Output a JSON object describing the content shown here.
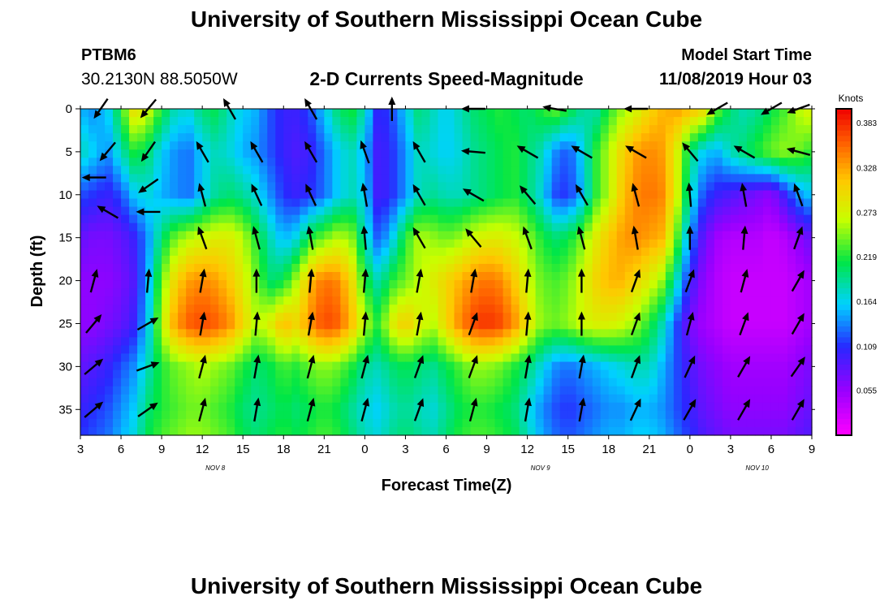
{
  "header": {
    "title": "University of Southern Mississippi Ocean Cube",
    "station_id": "PTBM6",
    "station_coords": "30.2130N 88.5050W",
    "subtitle": "2-D Currents Speed-Magnitude",
    "model_start_label": "Model Start Time",
    "model_start_value": "11/08/2019 Hour 03"
  },
  "footer": {
    "title": "University of Southern Mississippi Ocean Cube"
  },
  "chart_data": {
    "type": "heatmap",
    "title": "2-D Currents Speed-Magnitude",
    "xlabel": "Forecast Time(Z)",
    "ylabel": "Depth (ft)",
    "x_ticks": [
      "3",
      "6",
      "9",
      "12",
      "15",
      "18",
      "21",
      "0",
      "3",
      "6",
      "9",
      "12",
      "15",
      "18",
      "21",
      "0",
      "3",
      "6",
      "9"
    ],
    "x_start_hour": 3,
    "x_end_hour": 57,
    "y_ticks": [
      0,
      5,
      10,
      15,
      20,
      25,
      30,
      35
    ],
    "ylim": [
      0,
      38
    ],
    "y_inverted": true,
    "date_labels": [
      {
        "label": "NOV 8",
        "hour": 12
      },
      {
        "label": "NOV 9",
        "hour": 36
      },
      {
        "label": "NOV 10",
        "hour": 52
      }
    ],
    "colorbar": {
      "title": "Knots",
      "ticks": [
        "0.383",
        "0.328",
        "0.273",
        "0.219",
        "0.164",
        "0.109",
        "0.055"
      ],
      "range": [
        0.0,
        0.4
      ]
    },
    "speed_hours": [
      3,
      4,
      5,
      6,
      7,
      8,
      9,
      10,
      11,
      12,
      13,
      14,
      15,
      16,
      17,
      18,
      19,
      20,
      21,
      22,
      23,
      24,
      25,
      26,
      27,
      28,
      29,
      30,
      31,
      32,
      33,
      34,
      35,
      36,
      37,
      38,
      39,
      40,
      41,
      42,
      43,
      44,
      45,
      46,
      47,
      48,
      49,
      50,
      51,
      52,
      53,
      54,
      55,
      56,
      57
    ],
    "speed_depths": [
      0,
      5,
      10,
      15,
      20,
      25,
      30,
      35,
      38
    ],
    "speed": [
      [
        0.15,
        0.14,
        0.16,
        0.22,
        0.3,
        0.27,
        0.22,
        0.18,
        0.17,
        0.2,
        0.21,
        0.18,
        0.16,
        0.15,
        0.12,
        0.1,
        0.1,
        0.12,
        0.16,
        0.2,
        0.22,
        0.18,
        0.1,
        0.12,
        0.16,
        0.2,
        0.18,
        0.16,
        0.18,
        0.2,
        0.21,
        0.22,
        0.21,
        0.2,
        0.22,
        0.24,
        0.22,
        0.19,
        0.18,
        0.22,
        0.25,
        0.27,
        0.3,
        0.32,
        0.33,
        0.32,
        0.3,
        0.24,
        0.2,
        0.18,
        0.19,
        0.21,
        0.23,
        0.26,
        0.28
      ],
      [
        0.18,
        0.16,
        0.14,
        0.18,
        0.22,
        0.2,
        0.16,
        0.14,
        0.13,
        0.16,
        0.18,
        0.17,
        0.15,
        0.14,
        0.12,
        0.1,
        0.09,
        0.1,
        0.13,
        0.16,
        0.18,
        0.15,
        0.09,
        0.11,
        0.14,
        0.18,
        0.17,
        0.16,
        0.17,
        0.19,
        0.2,
        0.21,
        0.22,
        0.2,
        0.18,
        0.14,
        0.12,
        0.16,
        0.22,
        0.26,
        0.3,
        0.33,
        0.34,
        0.33,
        0.28,
        0.2,
        0.16,
        0.15,
        0.18,
        0.2,
        0.22,
        0.24,
        0.25,
        0.24,
        0.22
      ],
      [
        0.12,
        0.11,
        0.1,
        0.12,
        0.16,
        0.17,
        0.15,
        0.14,
        0.13,
        0.16,
        0.19,
        0.2,
        0.19,
        0.17,
        0.14,
        0.11,
        0.1,
        0.11,
        0.13,
        0.16,
        0.18,
        0.16,
        0.09,
        0.11,
        0.14,
        0.18,
        0.19,
        0.18,
        0.18,
        0.19,
        0.2,
        0.21,
        0.22,
        0.2,
        0.17,
        0.12,
        0.11,
        0.15,
        0.22,
        0.26,
        0.31,
        0.34,
        0.35,
        0.34,
        0.28,
        0.18,
        0.12,
        0.1,
        0.09,
        0.08,
        0.07,
        0.06,
        0.1,
        0.14,
        0.16
      ],
      [
        0.08,
        0.07,
        0.07,
        0.08,
        0.1,
        0.14,
        0.2,
        0.24,
        0.26,
        0.27,
        0.28,
        0.28,
        0.26,
        0.22,
        0.18,
        0.15,
        0.17,
        0.22,
        0.24,
        0.26,
        0.25,
        0.18,
        0.12,
        0.16,
        0.22,
        0.26,
        0.25,
        0.24,
        0.25,
        0.27,
        0.28,
        0.28,
        0.27,
        0.25,
        0.22,
        0.2,
        0.21,
        0.24,
        0.28,
        0.31,
        0.33,
        0.34,
        0.33,
        0.32,
        0.24,
        0.14,
        0.08,
        0.05,
        0.04,
        0.04,
        0.04,
        0.03,
        0.04,
        0.06,
        0.08
      ],
      [
        0.06,
        0.06,
        0.06,
        0.07,
        0.09,
        0.15,
        0.24,
        0.3,
        0.33,
        0.34,
        0.33,
        0.31,
        0.28,
        0.24,
        0.2,
        0.21,
        0.26,
        0.32,
        0.35,
        0.34,
        0.3,
        0.22,
        0.18,
        0.22,
        0.24,
        0.26,
        0.28,
        0.3,
        0.32,
        0.34,
        0.35,
        0.34,
        0.31,
        0.27,
        0.24,
        0.23,
        0.24,
        0.27,
        0.3,
        0.32,
        0.32,
        0.3,
        0.28,
        0.25,
        0.18,
        0.1,
        0.06,
        0.04,
        0.03,
        0.03,
        0.03,
        0.03,
        0.03,
        0.04,
        0.05
      ],
      [
        0.06,
        0.06,
        0.07,
        0.08,
        0.1,
        0.16,
        0.26,
        0.33,
        0.36,
        0.37,
        0.36,
        0.34,
        0.3,
        0.26,
        0.28,
        0.32,
        0.3,
        0.34,
        0.37,
        0.36,
        0.32,
        0.26,
        0.22,
        0.28,
        0.31,
        0.28,
        0.26,
        0.3,
        0.34,
        0.37,
        0.38,
        0.37,
        0.34,
        0.29,
        0.25,
        0.24,
        0.25,
        0.27,
        0.28,
        0.28,
        0.27,
        0.25,
        0.22,
        0.18,
        0.12,
        0.07,
        0.05,
        0.04,
        0.03,
        0.03,
        0.03,
        0.03,
        0.03,
        0.04,
        0.05
      ],
      [
        0.08,
        0.09,
        0.1,
        0.12,
        0.14,
        0.18,
        0.22,
        0.24,
        0.25,
        0.26,
        0.25,
        0.24,
        0.22,
        0.2,
        0.21,
        0.23,
        0.22,
        0.24,
        0.25,
        0.24,
        0.22,
        0.19,
        0.18,
        0.2,
        0.21,
        0.2,
        0.19,
        0.21,
        0.23,
        0.25,
        0.25,
        0.24,
        0.22,
        0.2,
        0.17,
        0.14,
        0.13,
        0.14,
        0.15,
        0.16,
        0.17,
        0.18,
        0.18,
        0.15,
        0.12,
        0.09,
        0.07,
        0.06,
        0.05,
        0.05,
        0.05,
        0.05,
        0.05,
        0.06,
        0.07
      ],
      [
        0.1,
        0.11,
        0.12,
        0.14,
        0.16,
        0.2,
        0.22,
        0.23,
        0.24,
        0.24,
        0.23,
        0.22,
        0.2,
        0.19,
        0.2,
        0.21,
        0.2,
        0.21,
        0.22,
        0.21,
        0.19,
        0.17,
        0.16,
        0.18,
        0.19,
        0.18,
        0.17,
        0.19,
        0.21,
        0.22,
        0.22,
        0.21,
        0.2,
        0.17,
        0.14,
        0.12,
        0.11,
        0.12,
        0.13,
        0.14,
        0.14,
        0.15,
        0.15,
        0.14,
        0.12,
        0.1,
        0.08,
        0.07,
        0.06,
        0.06,
        0.06,
        0.06,
        0.06,
        0.07,
        0.08
      ],
      [
        0.11,
        0.12,
        0.13,
        0.15,
        0.17,
        0.21,
        0.23,
        0.24,
        0.25,
        0.25,
        0.24,
        0.23,
        0.21,
        0.2,
        0.21,
        0.22,
        0.21,
        0.22,
        0.23,
        0.22,
        0.2,
        0.18,
        0.17,
        0.19,
        0.2,
        0.19,
        0.18,
        0.2,
        0.22,
        0.23,
        0.23,
        0.22,
        0.21,
        0.18,
        0.15,
        0.13,
        0.12,
        0.13,
        0.14,
        0.15,
        0.15,
        0.16,
        0.16,
        0.15,
        0.13,
        0.11,
        0.09,
        0.08,
        0.07,
        0.07,
        0.07,
        0.07,
        0.07,
        0.08,
        0.09
      ]
    ],
    "vectors": [
      {
        "h": 4.5,
        "d": 0,
        "dir": 215
      },
      {
        "h": 8,
        "d": 0,
        "dir": 220
      },
      {
        "h": 14,
        "d": 0,
        "dir": 330
      },
      {
        "h": 20,
        "d": 0,
        "dir": 330
      },
      {
        "h": 26,
        "d": 0,
        "dir": 0
      },
      {
        "h": 32,
        "d": 0,
        "dir": 270
      },
      {
        "h": 38,
        "d": 0,
        "dir": 280
      },
      {
        "h": 44,
        "d": 0,
        "dir": 270
      },
      {
        "h": 50,
        "d": 0,
        "dir": 240
      },
      {
        "h": 54,
        "d": 0,
        "dir": 240
      },
      {
        "h": 56,
        "d": 0,
        "dir": 250
      },
      {
        "h": 5,
        "d": 5,
        "dir": 220
      },
      {
        "h": 8,
        "d": 5,
        "dir": 215
      },
      {
        "h": 12,
        "d": 5,
        "dir": 330
      },
      {
        "h": 16,
        "d": 5,
        "dir": 330
      },
      {
        "h": 20,
        "d": 5,
        "dir": 330
      },
      {
        "h": 24,
        "d": 5,
        "dir": 340
      },
      {
        "h": 28,
        "d": 5,
        "dir": 330
      },
      {
        "h": 32,
        "d": 5,
        "dir": 275
      },
      {
        "h": 36,
        "d": 5,
        "dir": 300
      },
      {
        "h": 40,
        "d": 5,
        "dir": 300
      },
      {
        "h": 44,
        "d": 5,
        "dir": 300
      },
      {
        "h": 48,
        "d": 5,
        "dir": 320
      },
      {
        "h": 52,
        "d": 5,
        "dir": 300
      },
      {
        "h": 56,
        "d": 5,
        "dir": 285
      },
      {
        "h": 4,
        "d": 8,
        "dir": 270
      },
      {
        "h": 8,
        "d": 9,
        "dir": 235
      },
      {
        "h": 12,
        "d": 10,
        "dir": 345
      },
      {
        "h": 16,
        "d": 10,
        "dir": 335
      },
      {
        "h": 20,
        "d": 10,
        "dir": 335
      },
      {
        "h": 24,
        "d": 10,
        "dir": 350
      },
      {
        "h": 28,
        "d": 10,
        "dir": 330
      },
      {
        "h": 32,
        "d": 10,
        "dir": 300
      },
      {
        "h": 36,
        "d": 10,
        "dir": 320
      },
      {
        "h": 40,
        "d": 10,
        "dir": 330
      },
      {
        "h": 44,
        "d": 10,
        "dir": 345
      },
      {
        "h": 48,
        "d": 10,
        "dir": 355
      },
      {
        "h": 52,
        "d": 10,
        "dir": 350
      },
      {
        "h": 56,
        "d": 10,
        "dir": 340
      },
      {
        "h": 5,
        "d": 12,
        "dir": 300
      },
      {
        "h": 8,
        "d": 12,
        "dir": 270
      },
      {
        "h": 12,
        "d": 15,
        "dir": 340
      },
      {
        "h": 16,
        "d": 15,
        "dir": 345
      },
      {
        "h": 20,
        "d": 15,
        "dir": 350
      },
      {
        "h": 24,
        "d": 15,
        "dir": 355
      },
      {
        "h": 28,
        "d": 15,
        "dir": 330
      },
      {
        "h": 32,
        "d": 15,
        "dir": 320
      },
      {
        "h": 36,
        "d": 15,
        "dir": 340
      },
      {
        "h": 40,
        "d": 15,
        "dir": 345
      },
      {
        "h": 44,
        "d": 15,
        "dir": 350
      },
      {
        "h": 48,
        "d": 15,
        "dir": 0
      },
      {
        "h": 52,
        "d": 15,
        "dir": 5
      },
      {
        "h": 56,
        "d": 15,
        "dir": 20
      },
      {
        "h": 4,
        "d": 20,
        "dir": 15
      },
      {
        "h": 8,
        "d": 20,
        "dir": 5
      },
      {
        "h": 12,
        "d": 20,
        "dir": 10
      },
      {
        "h": 16,
        "d": 20,
        "dir": 0
      },
      {
        "h": 20,
        "d": 20,
        "dir": 5
      },
      {
        "h": 24,
        "d": 20,
        "dir": 5
      },
      {
        "h": 28,
        "d": 20,
        "dir": 10
      },
      {
        "h": 32,
        "d": 20,
        "dir": 10
      },
      {
        "h": 36,
        "d": 20,
        "dir": 5
      },
      {
        "h": 40,
        "d": 20,
        "dir": 0
      },
      {
        "h": 44,
        "d": 20,
        "dir": 20
      },
      {
        "h": 48,
        "d": 20,
        "dir": 20
      },
      {
        "h": 52,
        "d": 20,
        "dir": 15
      },
      {
        "h": 56,
        "d": 20,
        "dir": 30
      },
      {
        "h": 4,
        "d": 25,
        "dir": 40
      },
      {
        "h": 8,
        "d": 25,
        "dir": 60
      },
      {
        "h": 12,
        "d": 25,
        "dir": 10
      },
      {
        "h": 16,
        "d": 25,
        "dir": 5
      },
      {
        "h": 20,
        "d": 25,
        "dir": 10
      },
      {
        "h": 24,
        "d": 25,
        "dir": 5
      },
      {
        "h": 28,
        "d": 25,
        "dir": 10
      },
      {
        "h": 32,
        "d": 25,
        "dir": 20
      },
      {
        "h": 36,
        "d": 25,
        "dir": 5
      },
      {
        "h": 40,
        "d": 25,
        "dir": 0
      },
      {
        "h": 44,
        "d": 25,
        "dir": 20
      },
      {
        "h": 48,
        "d": 25,
        "dir": 15
      },
      {
        "h": 52,
        "d": 25,
        "dir": 20
      },
      {
        "h": 56,
        "d": 25,
        "dir": 30
      },
      {
        "h": 4,
        "d": 30,
        "dir": 50
      },
      {
        "h": 8,
        "d": 30,
        "dir": 70
      },
      {
        "h": 12,
        "d": 30,
        "dir": 15
      },
      {
        "h": 16,
        "d": 30,
        "dir": 10
      },
      {
        "h": 20,
        "d": 30,
        "dir": 15
      },
      {
        "h": 24,
        "d": 30,
        "dir": 15
      },
      {
        "h": 28,
        "d": 30,
        "dir": 20
      },
      {
        "h": 32,
        "d": 30,
        "dir": 20
      },
      {
        "h": 36,
        "d": 30,
        "dir": 10
      },
      {
        "h": 40,
        "d": 30,
        "dir": 10
      },
      {
        "h": 44,
        "d": 30,
        "dir": 20
      },
      {
        "h": 48,
        "d": 30,
        "dir": 25
      },
      {
        "h": 52,
        "d": 30,
        "dir": 30
      },
      {
        "h": 56,
        "d": 30,
        "dir": 35
      },
      {
        "h": 4,
        "d": 35,
        "dir": 50
      },
      {
        "h": 8,
        "d": 35,
        "dir": 55
      },
      {
        "h": 12,
        "d": 35,
        "dir": 15
      },
      {
        "h": 16,
        "d": 35,
        "dir": 10
      },
      {
        "h": 20,
        "d": 35,
        "dir": 15
      },
      {
        "h": 24,
        "d": 35,
        "dir": 15
      },
      {
        "h": 28,
        "d": 35,
        "dir": 20
      },
      {
        "h": 32,
        "d": 35,
        "dir": 15
      },
      {
        "h": 36,
        "d": 35,
        "dir": 10
      },
      {
        "h": 40,
        "d": 35,
        "dir": 10
      },
      {
        "h": 44,
        "d": 35,
        "dir": 25
      },
      {
        "h": 48,
        "d": 35,
        "dir": 30
      },
      {
        "h": 52,
        "d": 35,
        "dir": 30
      },
      {
        "h": 56,
        "d": 35,
        "dir": 30
      }
    ]
  }
}
